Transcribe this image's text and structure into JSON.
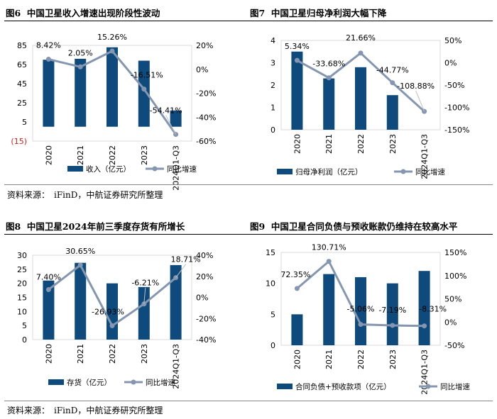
{
  "colors": {
    "bar": "#0e4a7c",
    "line": "#8496b0",
    "neg_tick": "#d32020"
  },
  "source_text": {
    "label": "资料来源：",
    "value": "iFinD，中航证券研究所整理"
  },
  "chart_data": [
    {
      "type": "bar",
      "figure_label": "图6",
      "title": "中国卫星收入增速出现阶段性波动",
      "categories": [
        "2020",
        "2021",
        "2022",
        "2023",
        "2024Q1-Q3"
      ],
      "series": [
        {
          "name": "收入（亿元）",
          "kind": "bar",
          "axis": "left",
          "values": [
            70,
            71,
            83,
            69,
            17
          ]
        },
        {
          "name": "同比增速",
          "kind": "line",
          "axis": "right",
          "values": [
            8.42,
            2.05,
            15.26,
            -16.51,
            -54.41
          ]
        }
      ],
      "data_labels": [
        "8.42%",
        "2.05%",
        "15.26%",
        "-16.51%",
        "-54.41%"
      ],
      "left_axis": {
        "ylim": [
          -15,
          85
        ],
        "ticks": [
          "85",
          "65",
          "45",
          "25",
          "5",
          "(15)"
        ],
        "tick_values": [
          85,
          65,
          45,
          25,
          5,
          -15
        ]
      },
      "right_axis": {
        "ylim": [
          -60,
          20
        ],
        "ticks": [
          "20%",
          "0%",
          "-20%",
          "-40%",
          "-60%"
        ],
        "tick_values": [
          20,
          0,
          -20,
          -40,
          -60
        ]
      },
      "legend_position": "bottom"
    },
    {
      "type": "bar",
      "figure_label": "图7",
      "title": "中国卫星归母净利润大幅下降",
      "categories": [
        "2020",
        "2021",
        "2022",
        "2023",
        "2024Q1-Q3"
      ],
      "series": [
        {
          "name": "归母净利润（亿元）",
          "kind": "bar",
          "axis": "left",
          "values": [
            3.5,
            2.3,
            2.8,
            1.55,
            0
          ]
        },
        {
          "name": "同比增速",
          "kind": "line",
          "axis": "right",
          "values": [
            5.34,
            -33.68,
            21.66,
            -44.77,
            -108.88
          ]
        }
      ],
      "data_labels": [
        "5.34%",
        "-33.68%",
        "21.66%",
        "-44.77%",
        "-108.88%"
      ],
      "left_axis": {
        "ylim": [
          0,
          4
        ],
        "ticks": [
          "4",
          "3",
          "2",
          "1",
          "0"
        ],
        "tick_values": [
          4,
          3,
          2,
          1,
          0
        ]
      },
      "right_axis": {
        "ylim": [
          -150,
          50
        ],
        "ticks": [
          "50%",
          "0%",
          "-50%",
          "-100%",
          "-150%"
        ],
        "tick_values": [
          50,
          0,
          -50,
          -100,
          -150
        ]
      },
      "legend_position": "bottom"
    },
    {
      "type": "bar",
      "figure_label": "图8",
      "title": "中国卫星2024年前三季度存货有所增长",
      "categories": [
        "2020",
        "2021",
        "2022",
        "2023",
        "2024Q1-Q3"
      ],
      "series": [
        {
          "name": "存货（亿元）",
          "kind": "bar",
          "axis": "left",
          "values": [
            21,
            27.3,
            20,
            18.7,
            26.5
          ]
        },
        {
          "name": "同比增速",
          "kind": "line",
          "axis": "right",
          "values": [
            7.4,
            30.65,
            -26.93,
            -6.21,
            18.71
          ]
        }
      ],
      "data_labels": [
        "7.40%",
        "30.65%",
        "-26.93%",
        "-6.21%",
        "18.71%"
      ],
      "left_axis": {
        "ylim": [
          0,
          30
        ],
        "ticks": [
          "30",
          "25",
          "20",
          "15",
          "10",
          "5",
          "0"
        ],
        "tick_values": [
          30,
          25,
          20,
          15,
          10,
          5,
          0
        ]
      },
      "right_axis": {
        "ylim": [
          -40,
          40
        ],
        "ticks": [
          "40%",
          "20%",
          "0%",
          "-20%",
          "-40%"
        ],
        "tick_values": [
          40,
          20,
          0,
          -20,
          -40
        ]
      },
      "legend_position": "bottom"
    },
    {
      "type": "bar",
      "figure_label": "图9",
      "title": "中国卫星合同负债与预收账款仍维持在较高水平",
      "categories": [
        "2020",
        "2021",
        "2022",
        "2023",
        "2024Q1-Q3"
      ],
      "series": [
        {
          "name": "合同负债+预收款项（亿元）",
          "kind": "bar",
          "axis": "left",
          "values": [
            5,
            11.5,
            11,
            10,
            12
          ]
        },
        {
          "name": "同比增速",
          "kind": "line",
          "axis": "right",
          "values": [
            72.35,
            130.71,
            -5.06,
            -7.19,
            -8.31
          ]
        }
      ],
      "data_labels": [
        "72.35%",
        "130.71%",
        "-5.06%",
        "-7.19%",
        "-8.31%"
      ],
      "left_axis": {
        "ylim": [
          0,
          15
        ],
        "ticks": [
          "15",
          "10",
          "5",
          "0"
        ],
        "tick_values": [
          15,
          10,
          5,
          0
        ]
      },
      "right_axis": {
        "ylim": [
          -50,
          150
        ],
        "ticks": [
          "150%",
          "100%",
          "50%",
          "0%",
          "-50%"
        ],
        "tick_values": [
          150,
          100,
          50,
          0,
          -50
        ]
      },
      "legend_position": "bottom"
    }
  ]
}
